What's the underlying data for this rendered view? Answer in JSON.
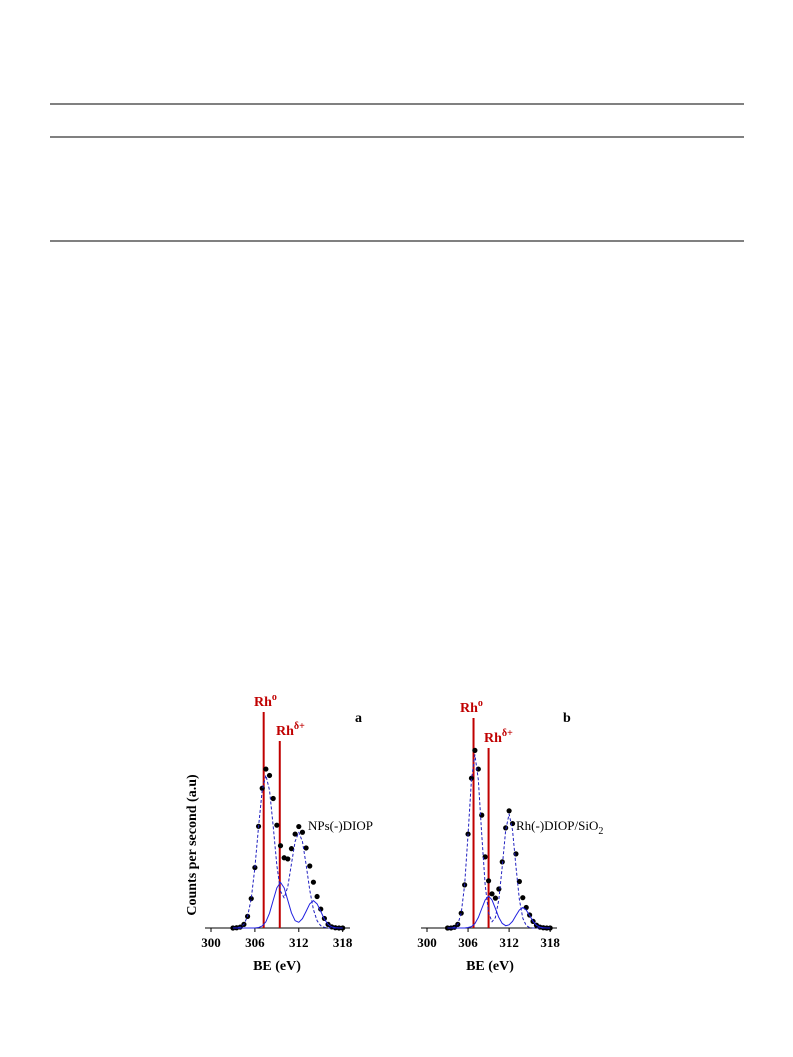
{
  "chart_data": [
    {
      "type": "line",
      "panel": "a",
      "y_label": "Counts per second (a.u)",
      "x_label": "BE (eV)",
      "curve_label": {
        "text": "NPs(-)DIOP"
      },
      "xlim": [
        300,
        319
      ],
      "ylim": [
        0,
        100
      ],
      "xticks": [
        300,
        306,
        312,
        318
      ],
      "x": [
        303,
        303.5,
        304,
        304.5,
        305,
        305.5,
        306,
        306.5,
        307,
        307.5,
        308,
        308.5,
        309,
        309.5,
        310,
        310.5,
        311,
        311.5,
        312,
        312.5,
        313,
        313.5,
        314,
        314.5,
        315,
        315.5,
        316,
        316.5,
        317,
        317.5,
        318
      ],
      "series": [
        {
          "color": "#000000",
          "style": "dots",
          "values": [
            0,
            0.1,
            0.4,
            1.6,
            5.1,
            12.9,
            26.5,
            44.6,
            61.3,
            69.7,
            66.9,
            56.8,
            45.1,
            36.1,
            30.8,
            30.3,
            34.8,
            41.2,
            44.5,
            42.0,
            35.1,
            27.2,
            20.1,
            13.8,
            8.3,
            4.2,
            1.6,
            0.5,
            0.1,
            0,
            0
          ]
        },
        {
          "color": "#2020c0",
          "style": "dashed",
          "values": [
            0,
            0.1,
            0.4,
            1.6,
            5.1,
            12.9,
            26.5,
            44.4,
            60.4,
            67,
            60.4,
            44.7,
            27.5,
            16.1,
            13.2,
            18.2,
            28.2,
            38,
            42,
            37.9,
            27.8,
            16.6,
            8.1,
            3.2,
            1,
            0.3,
            0,
            0,
            0,
            0,
            0
          ]
        },
        {
          "color": "#2020e0",
          "style": "solid",
          "values": [
            0,
            0,
            0,
            0,
            0,
            0,
            0,
            0.2,
            0.9,
            2.7,
            6.5,
            12.1,
            17.6,
            20,
            17.6,
            12.1,
            6.6,
            3.2,
            2.5,
            4.1,
            7.3,
            10.6,
            12,
            10.6,
            7.3,
            3.9,
            1.6,
            0.5,
            0.1,
            0,
            0
          ]
        }
      ],
      "markers": [
        {
          "text": "Rh",
          "sup": "o",
          "x": 307.2,
          "color": "#c00000"
        },
        {
          "text": "Rh",
          "sup": "δ+",
          "x": 309.4,
          "color": "#c00000"
        }
      ]
    },
    {
      "type": "line",
      "panel": "b",
      "x_label": "BE (eV)",
      "curve_label": {
        "text": "Rh(-)DIOP/SiO",
        "sub": "2"
      },
      "xlim": [
        300,
        319
      ],
      "ylim": [
        0,
        100
      ],
      "xticks": [
        300,
        306,
        312,
        318
      ],
      "x": [
        303,
        303.5,
        304,
        304.5,
        305,
        305.5,
        306,
        306.5,
        307,
        307.5,
        308,
        308.5,
        309,
        309.5,
        310,
        310.5,
        311,
        311.5,
        312,
        312.5,
        313,
        313.5,
        314,
        314.5,
        315,
        315.5,
        316,
        316.5,
        317,
        317.5,
        318
      ],
      "series": [
        {
          "color": "#000000",
          "style": "dots",
          "values": [
            0,
            0,
            0.3,
            1.6,
            6.5,
            18.9,
            41.2,
            65.7,
            77.9,
            69.7,
            49.5,
            31.2,
            20.7,
            15,
            13.1,
            17.1,
            29,
            43.9,
            51.4,
            45.8,
            32.5,
            20.4,
            13.3,
            9,
            5.7,
            2.9,
            1.2,
            0.4,
            0.1,
            0,
            0
          ]
        },
        {
          "color": "#2020c0",
          "style": "dashed",
          "values": [
            0,
            0,
            0.3,
            1.6,
            6.5,
            18.9,
            41,
            65.1,
            76,
            65.1,
            41,
            18.9,
            6.7,
            2.7,
            4.6,
            12.5,
            27,
            42.9,
            50,
            42.9,
            27,
            12.5,
            4.3,
            1.1,
            0.2,
            0,
            0,
            0,
            0,
            0,
            0
          ]
        },
        {
          "color": "#2020e0",
          "style": "solid",
          "values": [
            0,
            0,
            0,
            0,
            0,
            0,
            0.2,
            0.6,
            1.9,
            4.6,
            8.5,
            12.3,
            14,
            12.3,
            8.5,
            4.6,
            2,
            1,
            1.4,
            2.9,
            5.5,
            7.9,
            9,
            7.9,
            5.5,
            2.9,
            1.2,
            0.4,
            0.1,
            0,
            0
          ]
        }
      ],
      "markers": [
        {
          "text": "Rh",
          "sup": "o",
          "x": 306.8,
          "color": "#c00000"
        },
        {
          "text": "Rh",
          "sup": "δ+",
          "x": 309.0,
          "color": "#c00000"
        }
      ]
    }
  ]
}
